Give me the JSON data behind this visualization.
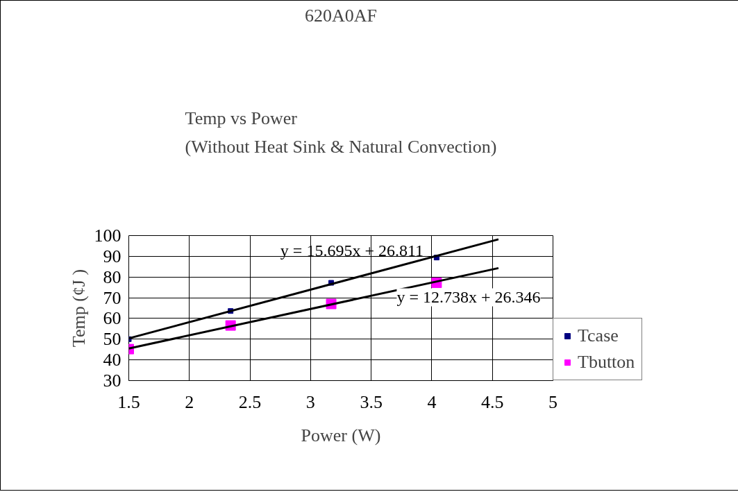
{
  "chart_data": {
    "type": "scatter",
    "title": "620A0AF",
    "subtitle": "Temp vs Power\n(Without Heat Sink & Natural Convection)",
    "xlabel": "Power (W)",
    "ylabel": "Temp (¢J )",
    "series": [
      {
        "name": "Tcase",
        "color": "#000080",
        "marker": "square",
        "x": [
          1.5,
          2.34,
          3.17,
          4.04
        ],
        "values": [
          50,
          63.6,
          77.2,
          89.4
        ]
      },
      {
        "name": "Tbutton",
        "color": "#ff00ff",
        "marker": "square",
        "x": [
          1.5,
          2.34,
          3.17,
          4.04
        ],
        "values": [
          45.2,
          56.6,
          67.0,
          77.2
        ]
      },
      {
        "type": "line",
        "color": "#000000",
        "x": [
          1.5,
          4.55
        ],
        "values": [
          50.4,
          98.2
        ]
      },
      {
        "type": "line",
        "color": "#000000",
        "x": [
          1.5,
          4.55
        ],
        "values": [
          45.5,
          84.3
        ]
      }
    ],
    "annotations": [
      "y = 15.695x + 26.811",
      "y = 12.738x + 26.346"
    ],
    "xlim": [
      1.5,
      5
    ],
    "xticks": [
      1.5,
      2,
      2.5,
      3,
      3.5,
      4,
      4.5,
      5
    ],
    "ylim": [
      30,
      100
    ],
    "yticks": [
      30,
      40,
      50,
      60,
      70,
      80,
      90,
      100
    ],
    "grid": true,
    "legend": "right"
  }
}
